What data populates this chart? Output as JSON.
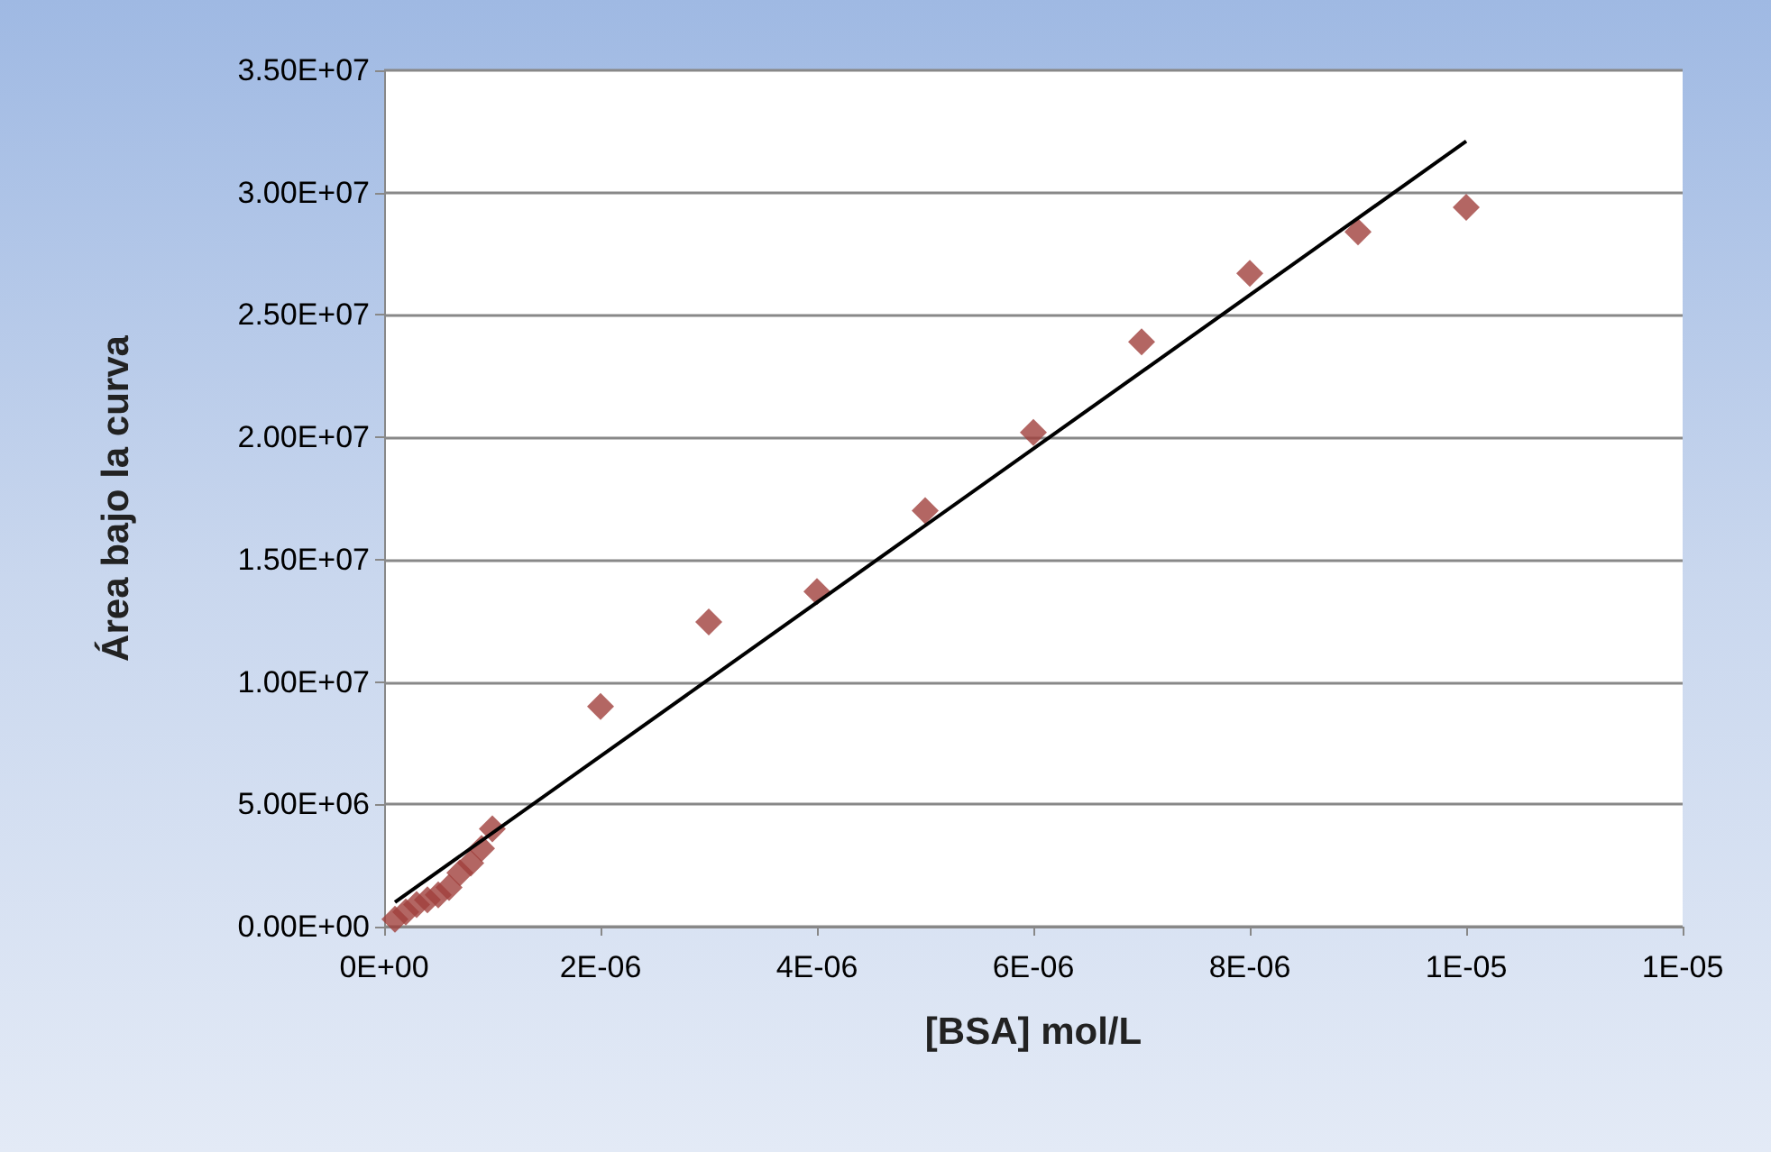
{
  "chart_data": {
    "type": "scatter",
    "xlabel": "[BSA] mol/L",
    "ylabel": "Área bajo la curva",
    "series": [
      {
        "color": "#a0403c",
        "marker": "diamond",
        "x": [
          1e-07,
          2e-07,
          3e-07,
          4e-07,
          5e-07,
          6e-07,
          7e-07,
          8e-07,
          9e-07,
          1e-06,
          2e-06,
          3e-06,
          4e-06,
          5e-06,
          6e-06,
          7e-06,
          8e-06,
          9e-06,
          1e-05
        ],
        "values": [
          300000,
          600000,
          900000,
          1100000,
          1300000,
          1600000,
          2200000,
          2600000,
          3200000,
          4000000,
          9000000,
          12450000,
          13700000,
          17000000,
          20200000,
          23900000,
          26700000,
          28400000,
          29400000
        ]
      },
      {
        "type": "line",
        "color": "#000000",
        "marker": "none",
        "x": [
          1e-07,
          1e-05
        ],
        "values": [
          1000000,
          32100000
        ]
      }
    ],
    "xlim": [
      0,
      1.2e-05
    ],
    "xticks": [
      {
        "value": 0,
        "label": "0E+00"
      },
      {
        "value": 2e-06,
        "label": "2E-06"
      },
      {
        "value": 4e-06,
        "label": "4E-06"
      },
      {
        "value": 6e-06,
        "label": "6E-06"
      },
      {
        "value": 8e-06,
        "label": "8E-06"
      },
      {
        "value": 1e-05,
        "label": "1E-05"
      },
      {
        "value": 1.2e-05,
        "label": "1E-05"
      }
    ],
    "ylim": [
      0,
      35000000
    ],
    "yticks": [
      {
        "value": 0,
        "label": "0.00E+00"
      },
      {
        "value": 5000000,
        "label": "5.00E+06"
      },
      {
        "value": 10000000,
        "label": "1.00E+07"
      },
      {
        "value": 15000000,
        "label": "1.50E+07"
      },
      {
        "value": 20000000,
        "label": "2.00E+07"
      },
      {
        "value": 25000000,
        "label": "2.50E+07"
      },
      {
        "value": 30000000,
        "label": "3.00E+07"
      },
      {
        "value": 35000000,
        "label": "3.50E+07"
      }
    ],
    "grid": "y"
  }
}
